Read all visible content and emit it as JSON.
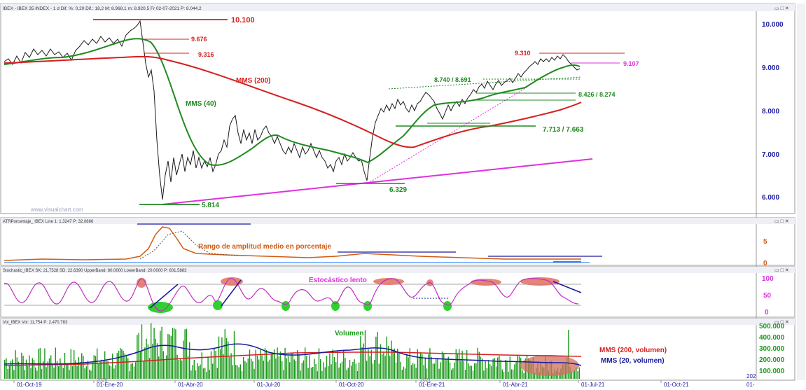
{
  "colors": {
    "price": "#1a1a1a",
    "mms40": "#1f8a1f",
    "mms200": "#d42020",
    "support": "#e030e0",
    "blueLine": "#1a1aa0",
    "axisText": "#1a1aa0",
    "atr": "#d45a10",
    "stoch": "#c030c0",
    "vol": "#1a9a1a",
    "volAvg200": "#d42020",
    "volAvg20": "#1a1aa0",
    "red": "#d42020",
    "green": "#1f8a1f",
    "magenta": "#e030e0"
  },
  "panels": {
    "price": {
      "header": "IBEX - IBEX 35 INDEX - 1 d  Dif. %: 0,20  Dif.: 18,2  M: 8.968,1  m: 8.920,5  Fr 02-07-2021  P: 8.044,2",
      "yticks": [
        "10.000",
        "9.000",
        "8.000",
        "7.000",
        "6.000"
      ],
      "watermark": "www.visualchart.com",
      "controls": "▭ □ ✕"
    },
    "atr": {
      "header": "ATRPorcentaje_ IBEX  Line 1: 1,3247  P: 32,0866",
      "yticks": [
        "5",
        "0"
      ],
      "controls": "▭ □ ✕"
    },
    "stoch": {
      "header": "Stochastic_IBEX  SK: 21,7528  SD: 22,6390  UpperBand: 80,0000  LowerBand: 20,0000  P: 601,5883",
      "yticks": [
        "100",
        "50",
        "0"
      ],
      "controls": "▭ □ ✕"
    },
    "vol": {
      "header": "Vol_IBEX  Vol: 11,754  P: 2,470.783",
      "yticks": [
        "500.000",
        "400.000",
        "300.000",
        "200.000",
        "100.000"
      ],
      "controls": "▭ □ ✕"
    }
  },
  "xticks": [
    "01-Oct-19",
    "01-Ene-20",
    "01-Abr-20",
    "01-Jul-20",
    "01-Oct-20",
    "01-Ene-21",
    "01-Abr-21",
    "01-Jul-21",
    "01-Oct-21",
    "01-"
  ],
  "xyears": [
    "2020",
    "2021",
    "202"
  ],
  "annotations": {
    "level_10100": "10.100",
    "level_9676": "9.676",
    "level_9316": "9.316",
    "level_9310": "9.310",
    "level_9107": "9.107",
    "range_8740": "8.740 / 8.691",
    "range_8426": "8.426 / 8.274",
    "range_7713": "7.713 / 7.663",
    "low_6329": "6.329",
    "low_5814": "5.814",
    "mms200": "MMS (200)",
    "mms40": "MMS (40)",
    "atr_title": "Rango de amplitud medio en porcentaje",
    "stoch_title": "Estocástico lento",
    "vol_title": "Volumen",
    "vol_mms200": "MMS (200, volumen)",
    "vol_mms20": "MMS (20, volumen)"
  },
  "chart_data": {
    "type": "line",
    "title": "IBEX 35 INDEX - 1 d",
    "xlabel": "",
    "ylabel": "",
    "ylim": [
      5700,
      10300
    ],
    "x": [
      "2019-09",
      "2019-10",
      "2019-11",
      "2019-12",
      "2020-01",
      "2020-02",
      "2020-03",
      "2020-04",
      "2020-05",
      "2020-06",
      "2020-07",
      "2020-08",
      "2020-09",
      "2020-10",
      "2020-11",
      "2020-12",
      "2021-01",
      "2021-02",
      "2021-03",
      "2021-04",
      "2021-05",
      "2021-06",
      "2021-07"
    ],
    "series": [
      {
        "name": "IBEX",
        "values": [
          9100,
          9250,
          9400,
          9550,
          9700,
          9950,
          6500,
          6800,
          7000,
          7500,
          7300,
          6900,
          6800,
          6600,
          7900,
          8100,
          8300,
          7900,
          8400,
          8600,
          9150,
          9200,
          8950
        ]
      },
      {
        "name": "MMS (40)",
        "values": [
          9050,
          9150,
          9350,
          9500,
          9600,
          9700,
          8600,
          7200,
          6900,
          7100,
          7400,
          7200,
          7000,
          6850,
          7300,
          8000,
          8200,
          8150,
          8250,
          8450,
          8800,
          9050,
          9050
        ]
      },
      {
        "name": "MMS (200)",
        "values": [
          9100,
          9130,
          9180,
          9220,
          9260,
          9300,
          9250,
          9000,
          8700,
          8400,
          8100,
          7800,
          7500,
          7200,
          7150,
          7250,
          7400,
          7550,
          7650,
          7800,
          8000,
          8150,
          8200
        ]
      }
    ],
    "levels": [
      10100,
      9676,
      9316,
      9310,
      9107,
      8740,
      8691,
      8426,
      8274,
      7713,
      7663,
      6329,
      5814
    ],
    "atr_ylim": [
      0,
      8
    ],
    "stoch_bands": [
      20,
      80
    ],
    "stoch_ylim": [
      0,
      100
    ],
    "volume_ylim": [
      0,
      520000
    ],
    "grid": false,
    "legend": "none"
  }
}
